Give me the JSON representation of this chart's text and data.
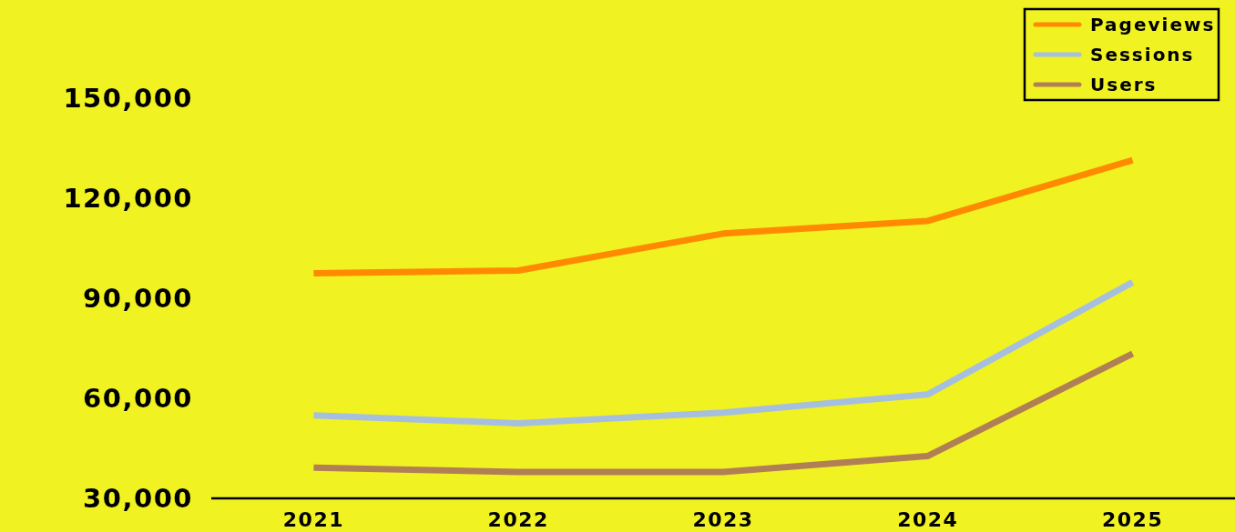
{
  "chart_data": {
    "type": "line",
    "categories": [
      "2021",
      "2022",
      "2023",
      "2024",
      "2025"
    ],
    "series": [
      {
        "name": "Pageviews",
        "color": "#ff8a00",
        "values": [
          97500,
          98300,
          109400,
          113200,
          131400
        ]
      },
      {
        "name": "Sessions",
        "color": "#a6bfdf",
        "values": [
          54900,
          52500,
          55700,
          61200,
          94800
        ]
      },
      {
        "name": "Users",
        "color": "#b07f55",
        "values": [
          39200,
          37900,
          37900,
          42700,
          73400
        ]
      }
    ],
    "ylim": [
      30000,
      150000
    ],
    "yticks": [
      {
        "value": 30000,
        "label": "30,000"
      },
      {
        "value": 60000,
        "label": "60,000"
      },
      {
        "value": 90000,
        "label": "90,000"
      },
      {
        "value": 120000,
        "label": "120,000"
      },
      {
        "value": 150000,
        "label": "150,000"
      }
    ],
    "grid": false,
    "legend": "top right",
    "marker": "none",
    "line_style": "solid"
  }
}
